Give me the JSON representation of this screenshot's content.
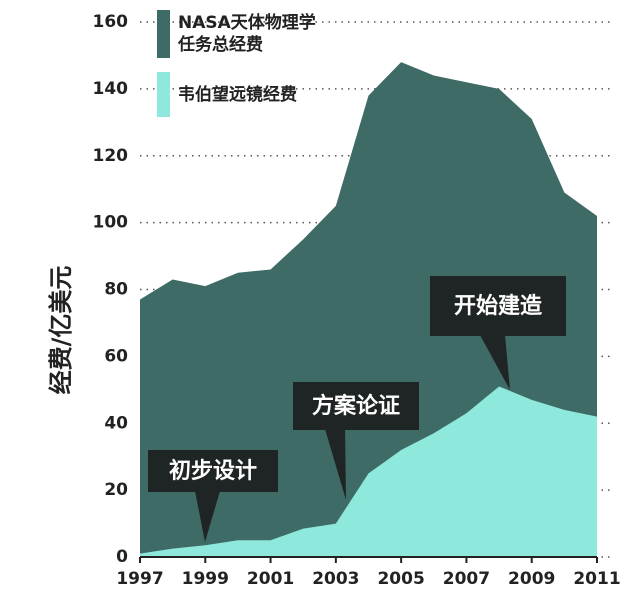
{
  "chart_data": {
    "type": "area",
    "y_label": "经费/亿美元",
    "x": [
      1997,
      1998,
      1999,
      2000,
      2001,
      2002,
      2003,
      2004,
      2005,
      2006,
      2007,
      2008,
      2009,
      2010,
      2011
    ],
    "series": [
      {
        "name": "NASA天体物理学任务总经费",
        "color": "#3e6b66",
        "values": [
          77,
          83,
          81,
          85,
          86,
          95,
          105,
          138,
          148,
          144,
          142,
          140,
          131,
          109,
          102
        ]
      },
      {
        "name": "韦伯望远镜经费",
        "color": "#8ee8dc",
        "values": [
          1,
          2.5,
          3.5,
          5,
          5,
          8.5,
          10,
          25,
          32,
          37,
          43,
          51,
          47,
          44,
          42
        ]
      }
    ],
    "annotations": [
      "初步设计",
      "方案论证",
      "开始建造"
    ],
    "xlim": [
      1997,
      2011
    ],
    "xticks": [
      1997,
      1999,
      2001,
      2003,
      2005,
      2007,
      2009,
      2011
    ],
    "ylim": [
      0,
      160
    ],
    "yticks": [
      0,
      20,
      40,
      60,
      80,
      100,
      120,
      140,
      160
    ],
    "grid": true
  }
}
